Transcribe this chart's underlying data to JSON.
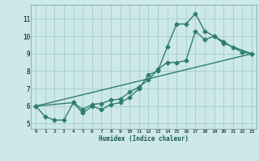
{
  "xlabel": "Humidex (Indice chaleur)",
  "bg_color": "#cce8e8",
  "grid_color": "#aacccc",
  "line_color": "#2e7d6e",
  "xlim": [
    -0.5,
    23.5
  ],
  "ylim": [
    4.7,
    11.8
  ],
  "xticks": [
    0,
    1,
    2,
    3,
    4,
    5,
    6,
    7,
    8,
    9,
    10,
    11,
    12,
    13,
    14,
    15,
    16,
    17,
    18,
    19,
    20,
    21,
    22,
    23
  ],
  "yticks": [
    5,
    6,
    7,
    8,
    9,
    10,
    11
  ],
  "series1": [
    [
      0,
      6.0
    ],
    [
      1,
      5.4
    ],
    [
      2,
      5.2
    ],
    [
      3,
      5.2
    ],
    [
      4,
      6.2
    ],
    [
      5,
      5.6
    ],
    [
      6,
      6.0
    ],
    [
      7,
      5.8
    ],
    [
      8,
      6.1
    ],
    [
      9,
      6.2
    ],
    [
      10,
      6.5
    ],
    [
      11,
      7.0
    ],
    [
      12,
      7.8
    ],
    [
      13,
      8.0
    ],
    [
      14,
      9.4
    ],
    [
      15,
      10.7
    ],
    [
      16,
      10.7
    ],
    [
      17,
      11.3
    ],
    [
      18,
      10.3
    ],
    [
      19,
      10.0
    ],
    [
      20,
      9.7
    ],
    [
      21,
      9.35
    ],
    [
      22,
      9.1
    ],
    [
      23,
      9.0
    ]
  ],
  "series2": [
    [
      0,
      6.0
    ],
    [
      4,
      6.2
    ],
    [
      5,
      5.8
    ],
    [
      6,
      6.1
    ],
    [
      7,
      6.15
    ],
    [
      8,
      6.35
    ],
    [
      9,
      6.4
    ],
    [
      10,
      6.8
    ],
    [
      11,
      7.1
    ],
    [
      12,
      7.5
    ],
    [
      13,
      8.1
    ],
    [
      14,
      8.5
    ],
    [
      15,
      8.5
    ],
    [
      16,
      8.6
    ],
    [
      17,
      10.3
    ],
    [
      18,
      9.8
    ],
    [
      19,
      10.0
    ],
    [
      20,
      9.6
    ],
    [
      23,
      9.0
    ]
  ],
  "series3": [
    [
      0,
      6.0
    ],
    [
      23,
      9.0
    ]
  ],
  "marker": "D",
  "markersize": 2.5,
  "linewidth": 1.0
}
